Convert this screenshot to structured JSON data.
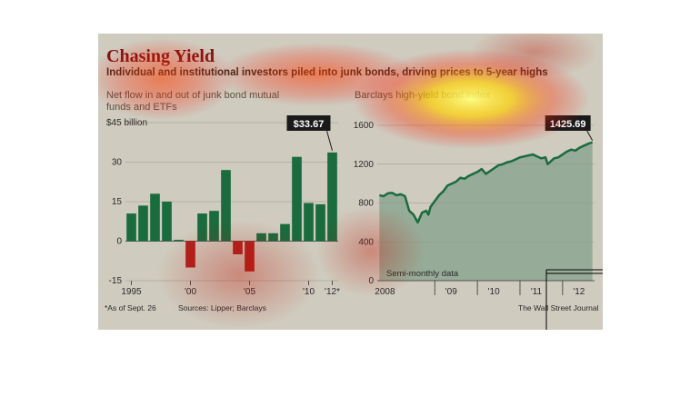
{
  "header": {
    "title": "Chasing Yield",
    "subtitle": "Individual and institutional investors piled into junk bonds, driving prices to 5-year highs"
  },
  "colors": {
    "background": "#cfcbbe",
    "positive_bar": "#1a6b3e",
    "negative_bar": "#b0211d",
    "line": "#1a6b3e",
    "area": "#8fa893",
    "title": "#7a1412"
  },
  "notes": {
    "footnote": "*As of Sept. 26",
    "sources": "Sources: Lipper; Barclays",
    "credit": "The Wall Street Journal"
  },
  "chart_data": [
    {
      "type": "bar",
      "title": "Net flow in and out of junk bond mutual funds and ETFs",
      "ylabel": "$45 billion",
      "ylim": [
        -15,
        45
      ],
      "yticks": [
        -15,
        0,
        15,
        30
      ],
      "y_unit_label": "$45 billion",
      "x_tick_labels": [
        "1995",
        "'00",
        "'05",
        "'10",
        "'12*"
      ],
      "x_tick_years": [
        1995,
        2000,
        2005,
        2010,
        2012
      ],
      "categories": [
        1995,
        1996,
        1997,
        1998,
        1999,
        2000,
        2001,
        2002,
        2003,
        2004,
        2005,
        2006,
        2007,
        2008,
        2009,
        2010,
        2011,
        2012
      ],
      "values": [
        10.5,
        13.5,
        18,
        15,
        0.5,
        -10,
        10.5,
        11.5,
        27,
        -5,
        -11.5,
        3,
        3,
        6.5,
        32,
        14.5,
        14,
        33.67
      ],
      "callout": "$33.67",
      "grid": true
    },
    {
      "type": "area",
      "title": "Barclays high-yield bond index",
      "ylim": [
        0,
        1600
      ],
      "yticks": [
        0,
        400,
        800,
        1200,
        1600
      ],
      "x_tick_labels": [
        "2008",
        "'09",
        "'10",
        "'11",
        "'12"
      ],
      "xlim": [
        2007.65,
        2012.75
      ],
      "annotation": "Semi-monthly data",
      "callout": "1425.69",
      "x": [
        2007.7,
        2007.8,
        2007.9,
        2008.0,
        2008.1,
        2008.2,
        2008.3,
        2008.4,
        2008.5,
        2008.6,
        2008.7,
        2008.8,
        2008.85,
        2008.9,
        2009.0,
        2009.1,
        2009.2,
        2009.3,
        2009.4,
        2009.5,
        2009.6,
        2009.7,
        2009.8,
        2009.9,
        2010.0,
        2010.1,
        2010.2,
        2010.3,
        2010.4,
        2010.5,
        2010.6,
        2010.7,
        2010.8,
        2010.9,
        2011.0,
        2011.1,
        2011.2,
        2011.3,
        2011.4,
        2011.5,
        2011.6,
        2011.65,
        2011.7,
        2011.8,
        2011.9,
        2012.0,
        2012.1,
        2012.2,
        2012.3,
        2012.4,
        2012.5,
        2012.6,
        2012.7
      ],
      "y": [
        880,
        870,
        900,
        905,
        880,
        890,
        870,
        720,
        680,
        600,
        700,
        720,
        680,
        760,
        820,
        880,
        920,
        980,
        1000,
        1020,
        1060,
        1050,
        1080,
        1100,
        1120,
        1150,
        1100,
        1130,
        1160,
        1190,
        1200,
        1220,
        1230,
        1250,
        1270,
        1280,
        1290,
        1300,
        1280,
        1260,
        1270,
        1200,
        1220,
        1260,
        1270,
        1300,
        1330,
        1350,
        1340,
        1370,
        1390,
        1410,
        1425.69
      ],
      "grid": true
    }
  ]
}
